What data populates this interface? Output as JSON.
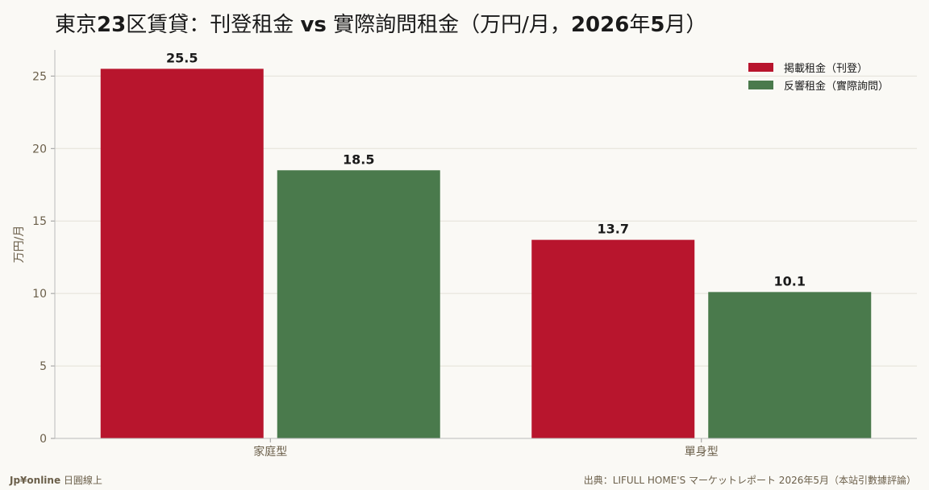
{
  "chart_data": {
    "type": "bar",
    "title_prefix": "東京",
    "title_num": "23",
    "title_mid": "区賃貸：刊登租金 ",
    "title_vs": "vs",
    "title_mid2": " 實際詢問租金（万円/月，",
    "title_year": "2026",
    "title_nen": "年",
    "title_month": "5",
    "title_suffix": "月）",
    "ylabel": "万円/月",
    "categories": [
      "家庭型",
      "單身型"
    ],
    "series": [
      {
        "name": "掲載租金（刊登）",
        "color": "#b8152d",
        "values": [
          25.5,
          13.7
        ]
      },
      {
        "name": "反響租金（實際詢問）",
        "color": "#4a7a4c",
        "values": [
          18.5,
          10.1
        ]
      }
    ],
    "ylim": [
      0,
      26.8
    ],
    "yticks": [
      0,
      5,
      10,
      15,
      20,
      25
    ],
    "grid": true,
    "legend_position": "top-right"
  },
  "footer": {
    "brand": "Jp¥online",
    "brand_sub": " 日圓線上",
    "source": "出典：LIFULL HOME'S マーケットレポート 2026年5月（本站引數據評論）"
  }
}
